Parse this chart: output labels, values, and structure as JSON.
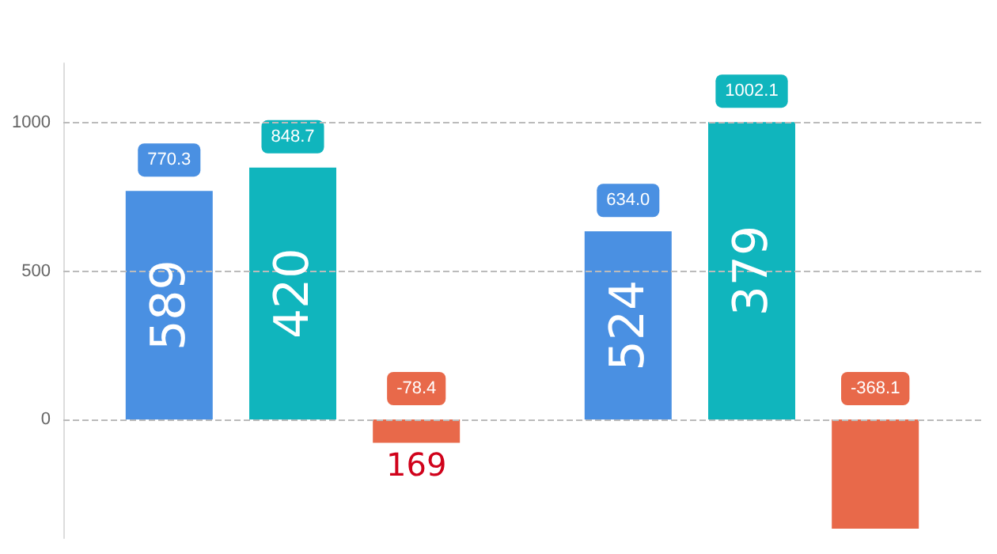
{
  "chart_data": {
    "type": "bar",
    "categories": [
      null,
      null
    ],
    "series": [
      {
        "color": "#4a90e2",
        "values": [
          770.3,
          634.0
        ],
        "value_labels": [
          "770.3",
          "634.0"
        ]
      },
      {
        "color": "#10b5bd",
        "values": [
          848.7,
          1002.1
        ],
        "value_labels": [
          "848.7",
          "1002.1"
        ]
      },
      {
        "color": "#e8694a",
        "values": [
          -78.4,
          -368.1
        ],
        "value_labels": [
          "-78.4",
          "-368.1"
        ]
      }
    ],
    "ylim": [
      -400,
      1200
    ],
    "yticks": [
      0,
      500,
      1000
    ],
    "grid": "y",
    "annotations": [
      "589",
      "420",
      "169",
      "524",
      "379"
    ]
  }
}
